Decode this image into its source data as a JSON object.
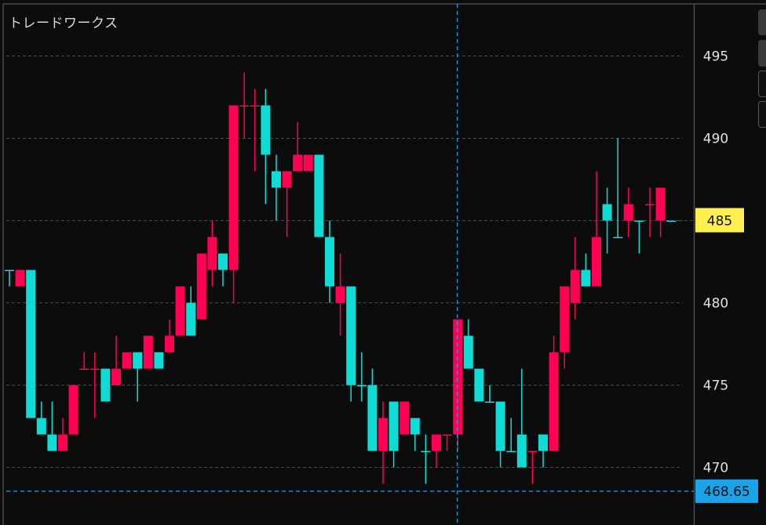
{
  "header": {
    "title": "トレードワークス"
  },
  "colors": {
    "up": "#ff0055",
    "down": "#10dcd6",
    "grid": "#4a4a4a",
    "last_price_bg": "#fff04e",
    "crosshair": "#1aa3e8",
    "background": "#0c0c0c"
  },
  "chart_data": {
    "type": "candlestick",
    "title": "",
    "xlabel": "",
    "ylabel": "",
    "ylim": [
      467.5,
      497
    ],
    "grid": true,
    "y_ticks": [
      495,
      490,
      485,
      480,
      475,
      470
    ],
    "y_tick_labels": [
      "495",
      "490",
      "485",
      "480",
      "475",
      "470"
    ],
    "last_price_label": "485",
    "last_price": 485,
    "crosshair_price_label": "468.65",
    "crosshair_price": 468.65,
    "crosshair_candle_index": 42,
    "candles_fields": [
      "open",
      "high",
      "low",
      "close",
      "color"
    ],
    "candles": [
      [
        482,
        482,
        481,
        482,
        "down"
      ],
      [
        481,
        482,
        481,
        482,
        "up"
      ],
      [
        482,
        482,
        473,
        473,
        "down"
      ],
      [
        473,
        474,
        472,
        472,
        "down"
      ],
      [
        472,
        474,
        471,
        471,
        "down"
      ],
      [
        471,
        473,
        471,
        472,
        "up"
      ],
      [
        472,
        475,
        472,
        475,
        "up"
      ],
      [
        476,
        477,
        476,
        476,
        "up"
      ],
      [
        476,
        477,
        473,
        476,
        "up"
      ],
      [
        476,
        476,
        474,
        474,
        "down"
      ],
      [
        475,
        478,
        475,
        476,
        "up"
      ],
      [
        476,
        477,
        476,
        477,
        "up"
      ],
      [
        477,
        477,
        474,
        476,
        "down"
      ],
      [
        476,
        478,
        476,
        478,
        "up"
      ],
      [
        477,
        477,
        476,
        476,
        "down"
      ],
      [
        477,
        479,
        477,
        478,
        "up"
      ],
      [
        478,
        481,
        478,
        481,
        "up"
      ],
      [
        480,
        481,
        478,
        478,
        "down"
      ],
      [
        479,
        483,
        479,
        483,
        "up"
      ],
      [
        482,
        485,
        481,
        484,
        "up"
      ],
      [
        483,
        483,
        481,
        482,
        "down"
      ],
      [
        482,
        492,
        480,
        492,
        "up"
      ],
      [
        492,
        494,
        490,
        492,
        "up"
      ],
      [
        492,
        493,
        488,
        492,
        "up"
      ],
      [
        492,
        493,
        486,
        489,
        "down"
      ],
      [
        488,
        489,
        485,
        487,
        "down"
      ],
      [
        487,
        488,
        484,
        488,
        "up"
      ],
      [
        488,
        491,
        488,
        489,
        "up"
      ],
      [
        488,
        489,
        488,
        489,
        "up"
      ],
      [
        489,
        489,
        484,
        484,
        "down"
      ],
      [
        484,
        485,
        480,
        481,
        "down"
      ],
      [
        480,
        483,
        478,
        481,
        "up"
      ],
      [
        481,
        481,
        474,
        475,
        "down"
      ],
      [
        475,
        477,
        474,
        475,
        "down"
      ],
      [
        475,
        476,
        471,
        471,
        "down"
      ],
      [
        471,
        474,
        469,
        473,
        "up"
      ],
      [
        474,
        474,
        470,
        471,
        "down"
      ],
      [
        472,
        474,
        472,
        474,
        "up"
      ],
      [
        473,
        473,
        471,
        472,
        "down"
      ],
      [
        471,
        472,
        469,
        471,
        "down"
      ],
      [
        471,
        472,
        470,
        472,
        "up"
      ],
      [
        472,
        472,
        471,
        472,
        "up"
      ],
      [
        472,
        479,
        471,
        479,
        "up"
      ],
      [
        478,
        479,
        476,
        476,
        "down"
      ],
      [
        476,
        476,
        474,
        474,
        "down"
      ],
      [
        474,
        475,
        474,
        474,
        "down"
      ],
      [
        474,
        474,
        470,
        471,
        "down"
      ],
      [
        471,
        473,
        471,
        471,
        "down"
      ],
      [
        472,
        476,
        470,
        470,
        "down"
      ],
      [
        471,
        471,
        469,
        471,
        "up"
      ],
      [
        472,
        472,
        470,
        471,
        "down"
      ],
      [
        471,
        478,
        471,
        477,
        "up"
      ],
      [
        477,
        481,
        476,
        481,
        "up"
      ],
      [
        480,
        484,
        479,
        482,
        "up"
      ],
      [
        482,
        483,
        481,
        481,
        "down"
      ],
      [
        481,
        488,
        481,
        484,
        "up"
      ],
      [
        486,
        487,
        483,
        485,
        "down"
      ],
      [
        484,
        490,
        484,
        484,
        "down"
      ],
      [
        485,
        487,
        484,
        486,
        "up"
      ],
      [
        485,
        485,
        483,
        485,
        "down"
      ],
      [
        486,
        487,
        484,
        486,
        "up"
      ],
      [
        485,
        487,
        484,
        487,
        "up"
      ],
      [
        485,
        485,
        485,
        485,
        "down"
      ]
    ]
  }
}
